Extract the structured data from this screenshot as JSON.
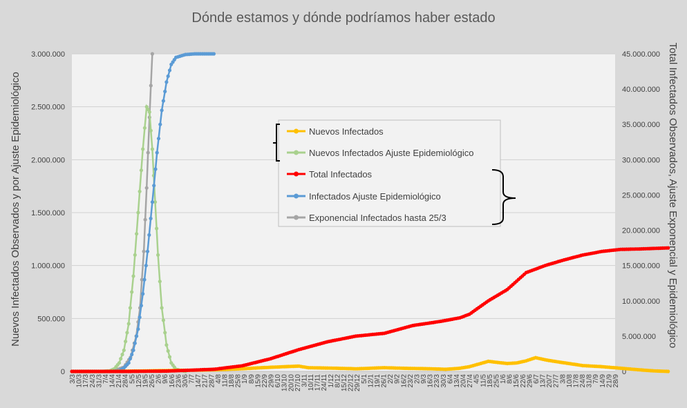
{
  "chart_data": {
    "type": "line",
    "title": "Dónde estamos y dónde podríamos haber estado",
    "ylabel_left": "Nuevos Infectados Observados y por Ajuste Epidemiológico",
    "ylabel_right": "Total Infectados Observados, Ajuste Exponencial y Epidemiológico",
    "ylim_left": [
      0,
      3000000
    ],
    "ylim_right": [
      0,
      45000000
    ],
    "yticks_left": [
      "0",
      "500.000",
      "1.000.000",
      "1.500.000",
      "2.000.000",
      "2.500.000",
      "3.000.000"
    ],
    "yticks_right": [
      "0",
      "5.000.000",
      "10.000.000",
      "15.000.000",
      "20.000.000",
      "25.000.000",
      "30.000.000",
      "35.000.000",
      "40.000.000",
      "45.000.000"
    ],
    "x_start": "2020-03-03",
    "x_tick_step_days": 7,
    "xtick_labels": [
      "3/3",
      "10/3",
      "17/3",
      "24/3",
      "31/3",
      "7/4",
      "14/4",
      "21/4",
      "28/4",
      "5/5",
      "12/5",
      "19/5",
      "26/5",
      "2/6",
      "9/6",
      "16/6",
      "23/6",
      "30/6",
      "7/7",
      "14/7",
      "21/7",
      "28/7",
      "4/8",
      "11/8",
      "18/8",
      "25/8",
      "1/9",
      "8/9",
      "15/9",
      "22/9",
      "29/9",
      "6/10",
      "13/10",
      "20/10",
      "27/10",
      "3/11",
      "10/11",
      "17/11",
      "24/11",
      "1/12",
      "8/12",
      "15/12",
      "22/12",
      "29/12",
      "5/1",
      "12/1",
      "19/1",
      "26/1",
      "2/2",
      "9/2",
      "16/2",
      "23/2",
      "2/3",
      "9/3",
      "16/3",
      "23/3",
      "30/3",
      "6/4",
      "13/4",
      "20/4",
      "27/4",
      "4/5",
      "11/5",
      "18/5",
      "25/5",
      "1/6",
      "8/6",
      "15/6",
      "22/6",
      "29/6",
      "6/7",
      "13/7",
      "20/7",
      "27/7",
      "3/8",
      "10/8",
      "17/8",
      "24/8",
      "31/8",
      "7/9",
      "14/9",
      "21/9",
      "28/9"
    ],
    "legend_placement": "center",
    "grid": true,
    "series": [
      {
        "name": "Nuevos Infectados",
        "axis": "left",
        "color": "#ffc000",
        "points": [
          [
            0,
            0
          ],
          [
            35,
            200
          ],
          [
            60,
            3000
          ],
          [
            100,
            8000
          ],
          [
            150,
            15000
          ],
          [
            180,
            25000
          ],
          [
            200,
            35000
          ],
          [
            225,
            45000
          ],
          [
            240,
            50000
          ],
          [
            250,
            35000
          ],
          [
            280,
            30000
          ],
          [
            300,
            25000
          ],
          [
            330,
            35000
          ],
          [
            350,
            30000
          ],
          [
            380,
            25000
          ],
          [
            395,
            20000
          ],
          [
            410,
            30000
          ],
          [
            420,
            45000
          ],
          [
            430,
            70000
          ],
          [
            440,
            95000
          ],
          [
            450,
            85000
          ],
          [
            460,
            75000
          ],
          [
            470,
            80000
          ],
          [
            480,
            100000
          ],
          [
            490,
            130000
          ],
          [
            500,
            110000
          ],
          [
            510,
            95000
          ],
          [
            525,
            75000
          ],
          [
            540,
            55000
          ],
          [
            560,
            45000
          ],
          [
            580,
            30000
          ],
          [
            600,
            15000
          ],
          [
            615,
            5000
          ],
          [
            630,
            0
          ]
        ]
      },
      {
        "name": "Nuevos Infectados Ajuste Epidemiológico",
        "axis": "left",
        "color": "#a9d18e",
        "points": [
          [
            0,
            0
          ],
          [
            30,
            0
          ],
          [
            40,
            5000
          ],
          [
            45,
            25000
          ],
          [
            50,
            80000
          ],
          [
            55,
            200000
          ],
          [
            60,
            450000
          ],
          [
            65,
            900000
          ],
          [
            70,
            1500000
          ],
          [
            75,
            2100000
          ],
          [
            79,
            2500000
          ],
          [
            82,
            2450000
          ],
          [
            85,
            2100000
          ],
          [
            88,
            1600000
          ],
          [
            91,
            1100000
          ],
          [
            95,
            600000
          ],
          [
            100,
            250000
          ],
          [
            105,
            80000
          ],
          [
            110,
            20000
          ],
          [
            120,
            0
          ]
        ]
      },
      {
        "name": "Total Infectados",
        "axis": "right",
        "color": "#ff0000",
        "points": [
          [
            0,
            0
          ],
          [
            60,
            0
          ],
          [
            100,
            50000
          ],
          [
            150,
            300000
          ],
          [
            180,
            800000
          ],
          [
            210,
            1800000
          ],
          [
            240,
            3100000
          ],
          [
            270,
            4200000
          ],
          [
            300,
            5000000
          ],
          [
            330,
            5400000
          ],
          [
            360,
            6500000
          ],
          [
            390,
            7100000
          ],
          [
            410,
            7600000
          ],
          [
            420,
            8100000
          ],
          [
            440,
            10000000
          ],
          [
            460,
            11600000
          ],
          [
            480,
            14000000
          ],
          [
            500,
            15000000
          ],
          [
            520,
            15800000
          ],
          [
            540,
            16500000
          ],
          [
            560,
            17000000
          ],
          [
            580,
            17300000
          ],
          [
            600,
            17350000
          ],
          [
            620,
            17450000
          ],
          [
            630,
            17500000
          ]
        ]
      },
      {
        "name": "Infectados Ajuste Epidemiológico",
        "axis": "right",
        "color": "#5b9bd5",
        "points": [
          [
            0,
            0
          ],
          [
            40,
            0
          ],
          [
            50,
            100000
          ],
          [
            55,
            500000
          ],
          [
            60,
            1200000
          ],
          [
            65,
            3000000
          ],
          [
            70,
            6000000
          ],
          [
            75,
            11000000
          ],
          [
            80,
            17000000
          ],
          [
            85,
            24000000
          ],
          [
            90,
            31000000
          ],
          [
            95,
            37000000
          ],
          [
            100,
            41000000
          ],
          [
            105,
            43500000
          ],
          [
            110,
            44500000
          ],
          [
            120,
            44900000
          ],
          [
            130,
            45000000
          ],
          [
            140,
            45000000
          ],
          [
            150,
            45000000
          ]
        ]
      },
      {
        "name": "Exponencial Infectados hasta 25/3",
        "axis": "right",
        "color": "#a5a5a5",
        "points": [
          [
            0,
            0
          ],
          [
            35,
            0
          ],
          [
            45,
            100000
          ],
          [
            55,
            600000
          ],
          [
            62,
            2000000
          ],
          [
            68,
            5000000
          ],
          [
            72,
            9000000
          ],
          [
            76,
            17000000
          ],
          [
            79,
            26000000
          ],
          [
            82,
            36000000
          ],
          [
            85,
            45000000
          ]
        ]
      }
    ]
  }
}
